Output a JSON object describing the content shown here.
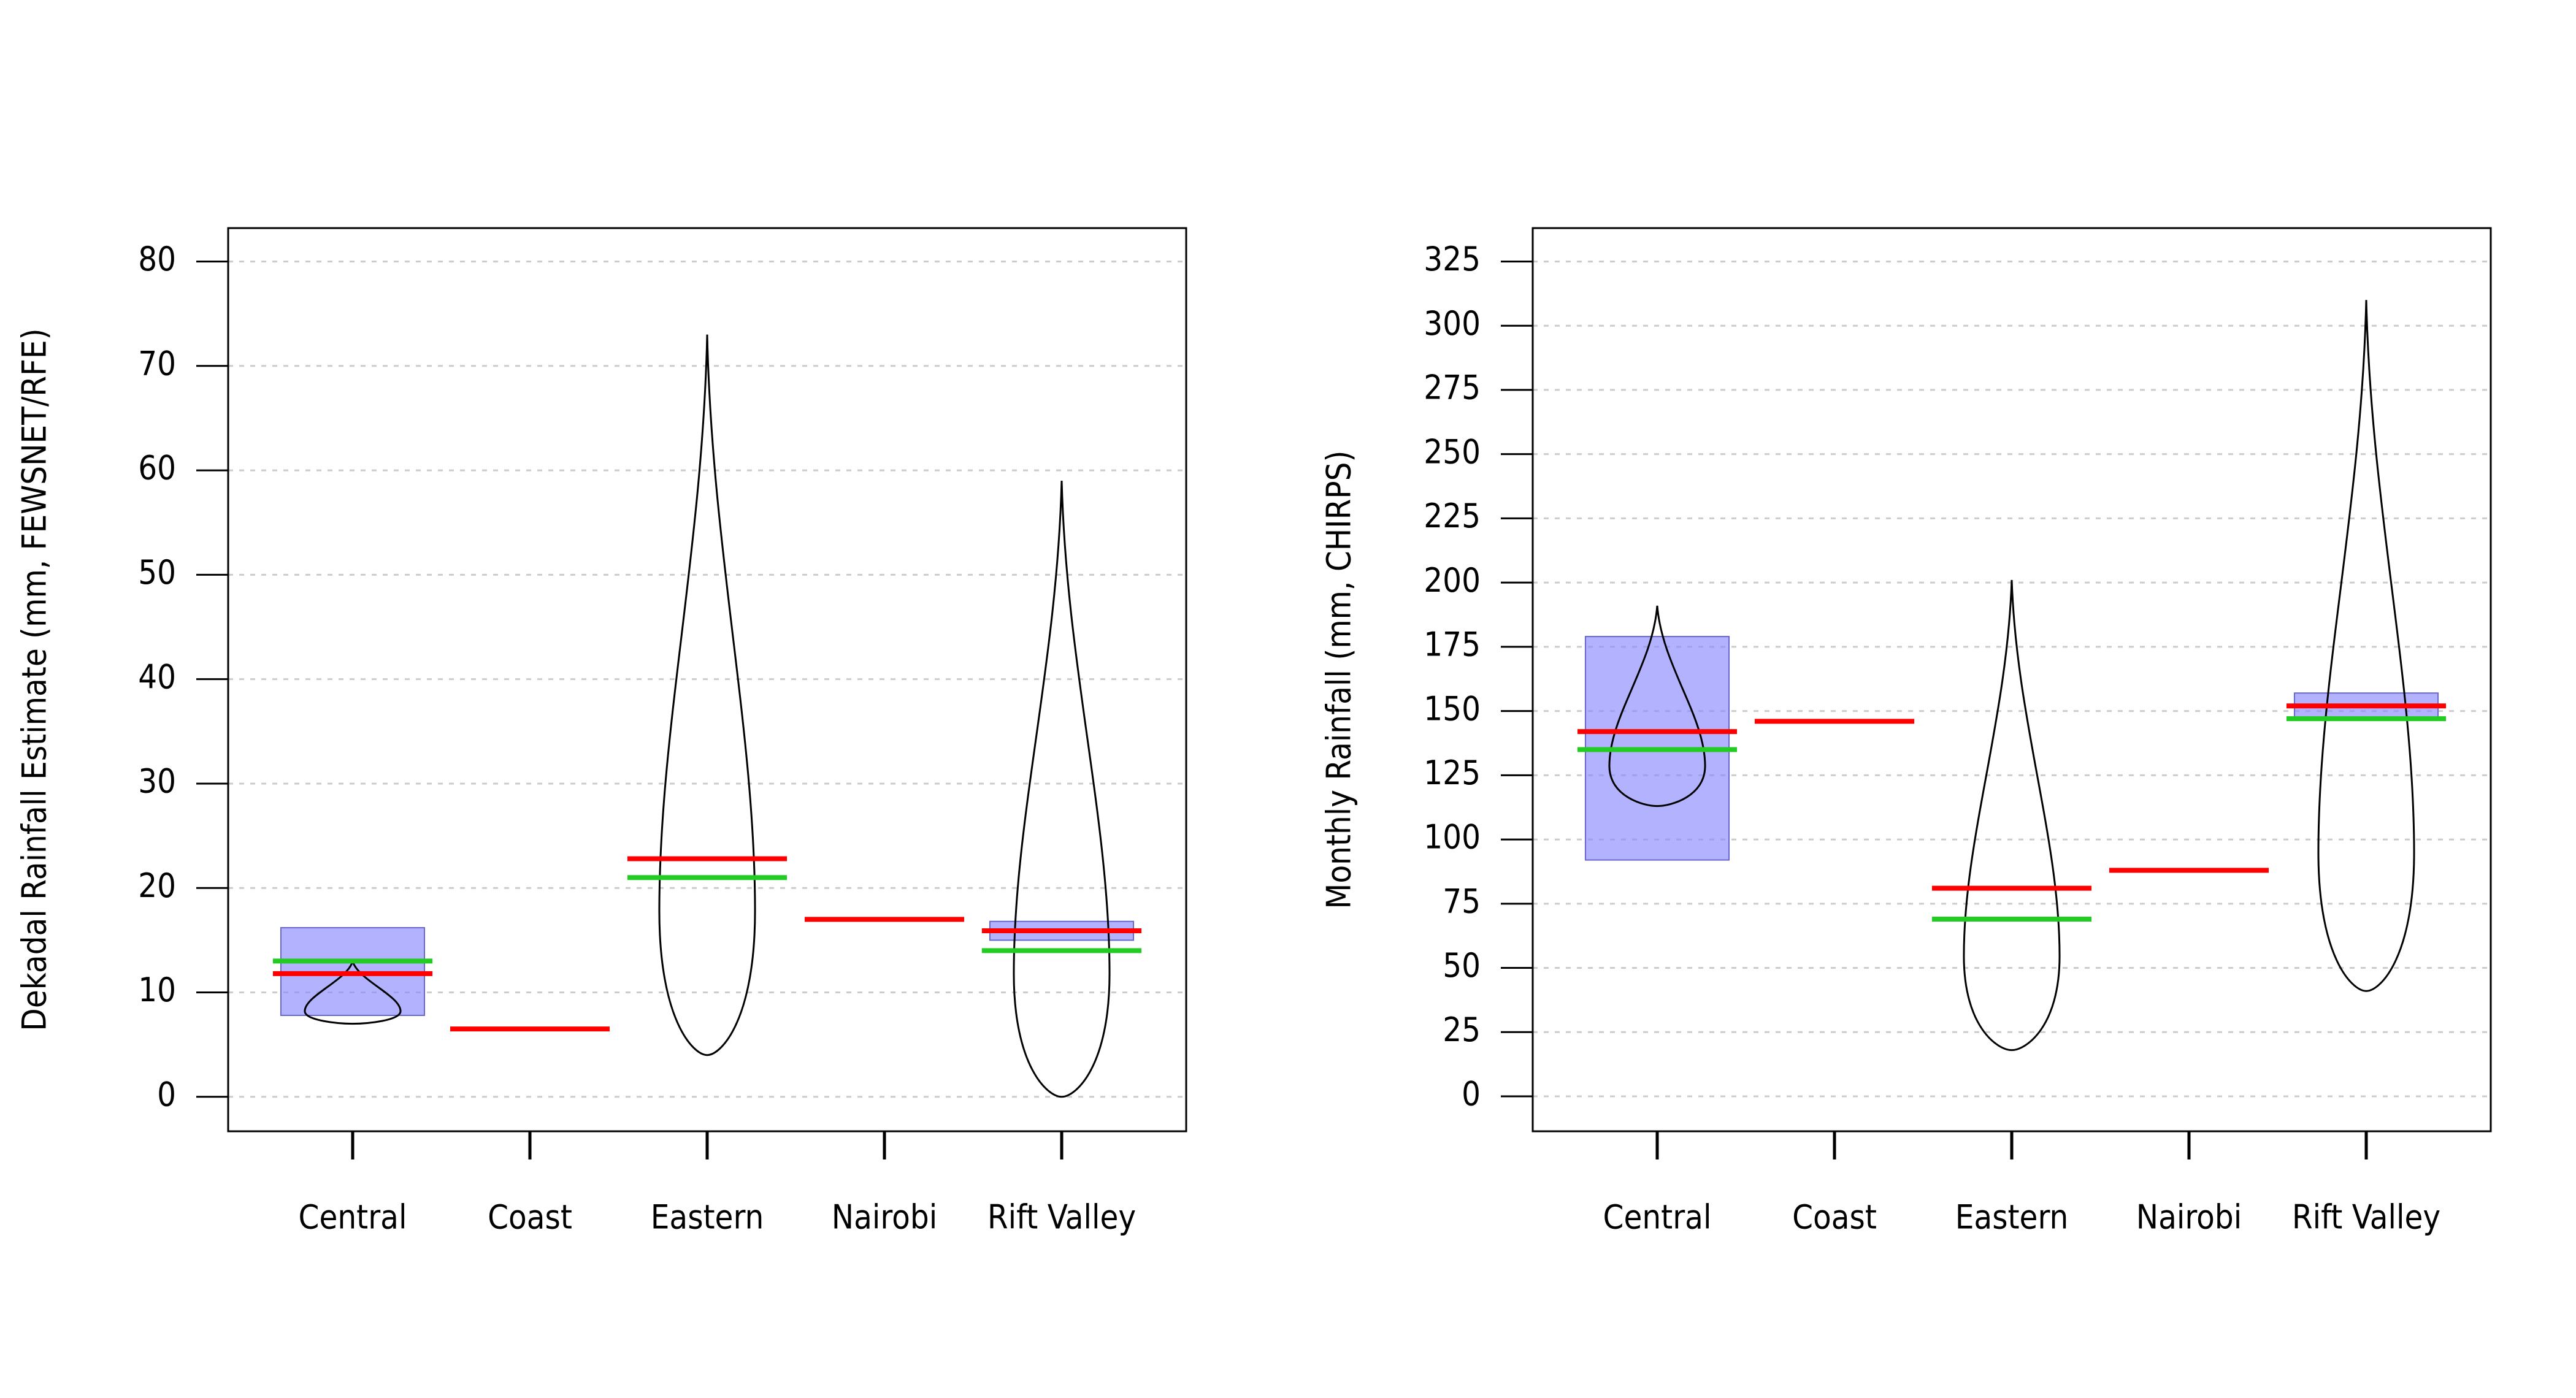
{
  "chart_data": [
    {
      "type": "violin",
      "y_label": "Dekadal Rainfall Estimate (mm, FEWSNET/RFE)",
      "categories": [
        "Central",
        "Coast",
        "Eastern",
        "Nairobi",
        "Rift Valley"
      ],
      "means": [
        11.8,
        6.5,
        22.8,
        17,
        15.9
      ],
      "medians": [
        13,
        null,
        21,
        null,
        14
      ],
      "hdi_low": [
        7.8,
        null,
        null,
        null,
        15
      ],
      "hdi_high": [
        16.2,
        null,
        null,
        null,
        16.8
      ],
      "min": [
        7,
        null,
        4,
        null,
        0
      ],
      "max": [
        13,
        null,
        73,
        null,
        59
      ],
      "mean_color": "#ff0000",
      "median_color": "#22cc22",
      "hdi_color": "#8888ff",
      "ylim": [
        -3.3,
        83.2
      ],
      "yticks": [
        0,
        10,
        20,
        30,
        40,
        50,
        60,
        70,
        80
      ],
      "grid": true
    },
    {
      "type": "violin",
      "y_label": "Monthly Rainfall (mm, CHIRPS)",
      "categories": [
        "Central",
        "Coast",
        "Eastern",
        "Nairobi",
        "Rift Valley"
      ],
      "means": [
        142,
        146,
        81,
        88,
        152
      ],
      "medians": [
        135,
        null,
        69,
        null,
        147
      ],
      "hdi_low": [
        92,
        null,
        null,
        null,
        147
      ],
      "hdi_high": [
        179,
        null,
        null,
        null,
        157
      ],
      "min": [
        113,
        null,
        18,
        null,
        41
      ],
      "max": [
        191,
        null,
        201,
        null,
        310
      ],
      "mean_color": "#ff0000",
      "median_color": "#22cc22",
      "hdi_color": "#8888ff",
      "ylim": [
        -13.6,
        338
      ],
      "yticks": [
        0,
        25,
        50,
        75,
        100,
        125,
        150,
        175,
        200,
        225,
        250,
        275,
        300,
        325
      ],
      "grid": true
    }
  ]
}
